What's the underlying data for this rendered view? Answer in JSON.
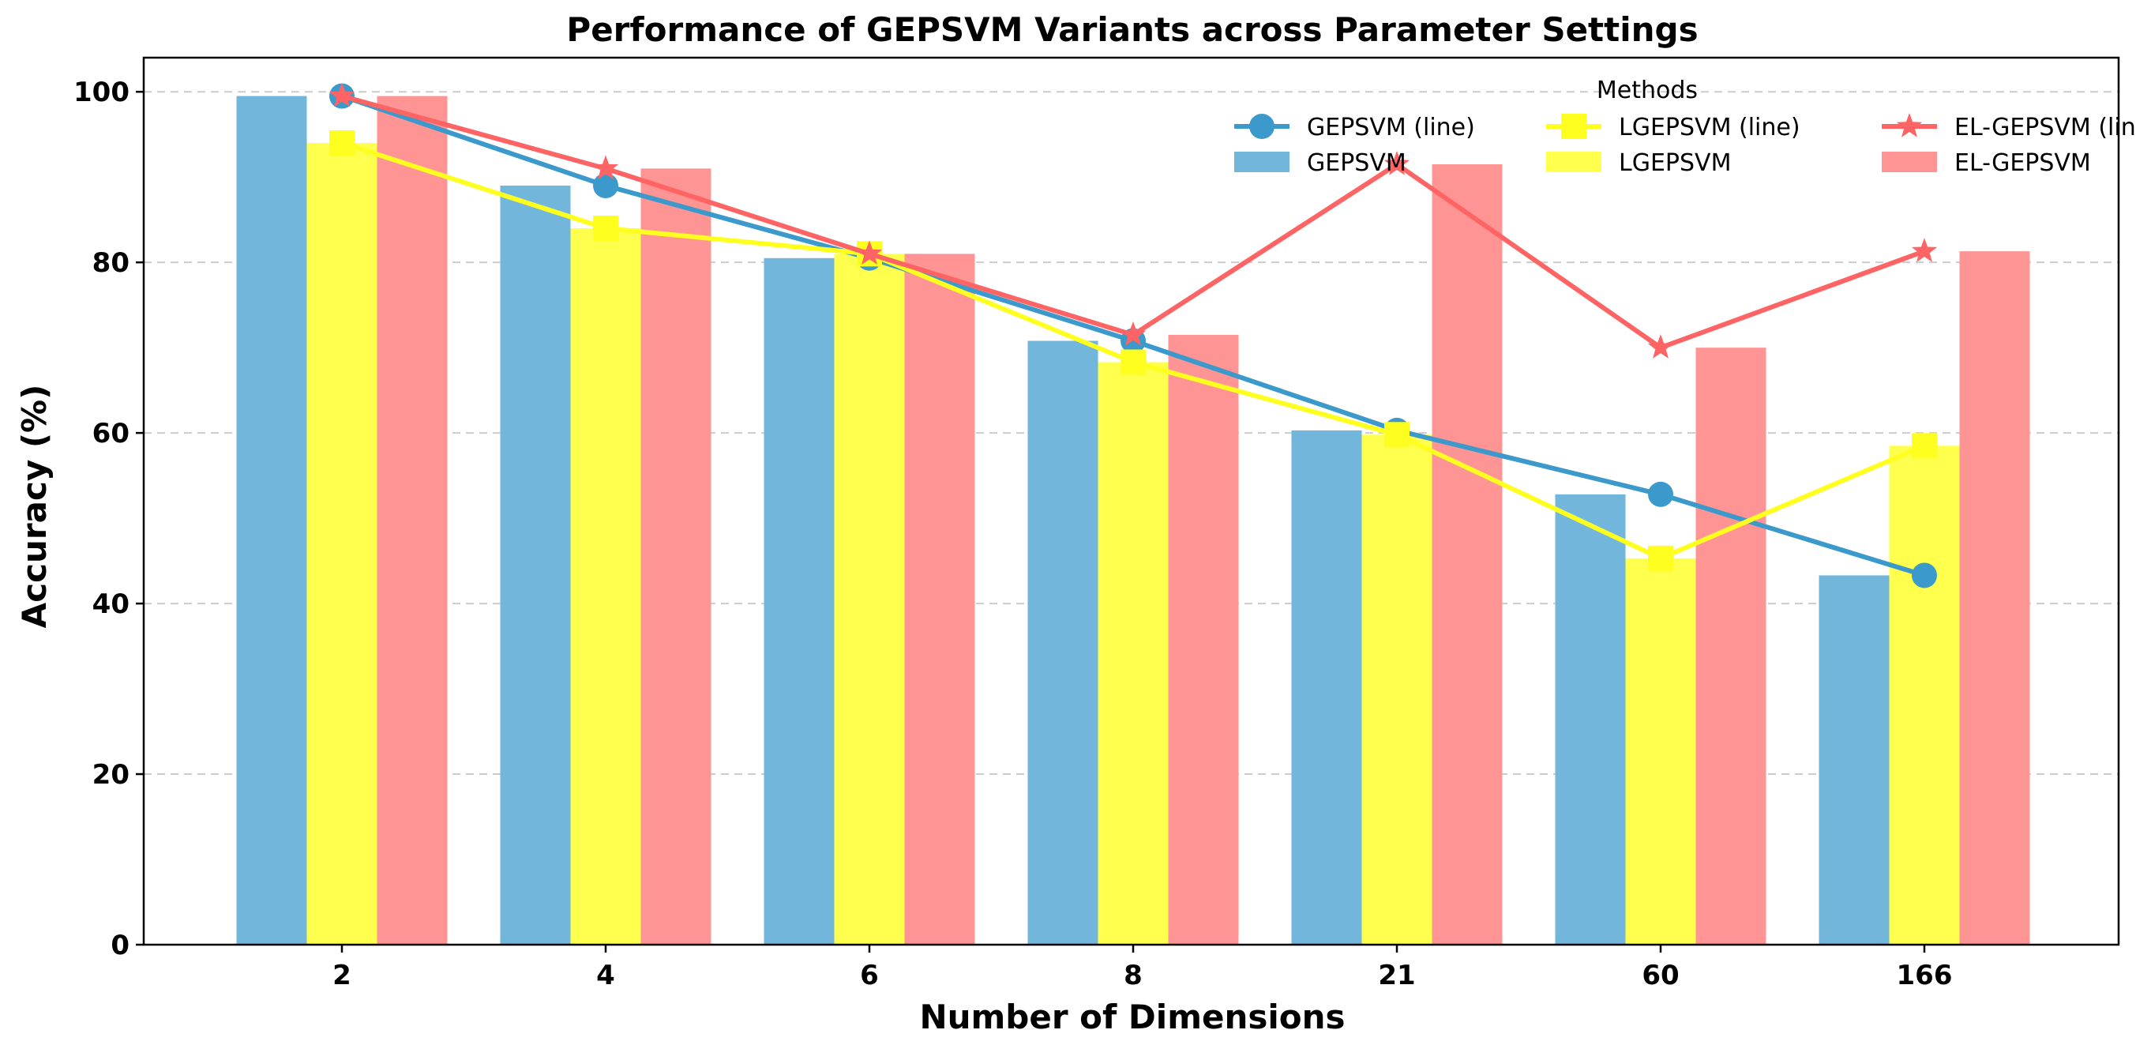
{
  "chart_data": {
    "type": "bar",
    "title": "Performance of GEPSVM Variants across Parameter Settings",
    "xlabel": "Number of Dimensions",
    "ylabel": "Accuracy (%)",
    "categories": [
      "2",
      "4",
      "6",
      "8",
      "21",
      "60",
      "166"
    ],
    "ylim": [
      0,
      104
    ],
    "yticks": [
      0,
      20,
      40,
      60,
      80,
      100
    ],
    "grid": "horizontal dashed",
    "series": [
      {
        "name": "GEPSVM",
        "color": "#72B6DB",
        "values": [
          99.5,
          89.0,
          80.5,
          70.8,
          60.3,
          52.8,
          43.3
        ]
      },
      {
        "name": "LGEPSVM",
        "color": "#FFFF4D",
        "values": [
          94.0,
          84.0,
          81.0,
          68.3,
          59.8,
          45.3,
          58.5
        ]
      },
      {
        "name": "EL-GEPSVM",
        "color": "#FF9494",
        "values": [
          99.5,
          91.0,
          81.0,
          71.5,
          91.5,
          70.0,
          81.3
        ]
      }
    ],
    "lines": [
      {
        "name": "GEPSVM (line)",
        "color": "#3B99CB",
        "marker": "circle",
        "series": 0
      },
      {
        "name": "LGEPSVM (line)",
        "color": "#FFFF1F",
        "marker": "square",
        "series": 1
      },
      {
        "name": "EL-GEPSVM (line)",
        "color": "#FF6464",
        "marker": "star",
        "series": 2
      }
    ],
    "legend": {
      "title": "Methods",
      "placement": "top-right",
      "entries": [
        "GEPSVM (line)",
        "LGEPSVM (line)",
        "EL-GEPSVM (line)",
        "GEPSVM",
        "LGEPSVM",
        "EL-GEPSVM"
      ]
    }
  }
}
